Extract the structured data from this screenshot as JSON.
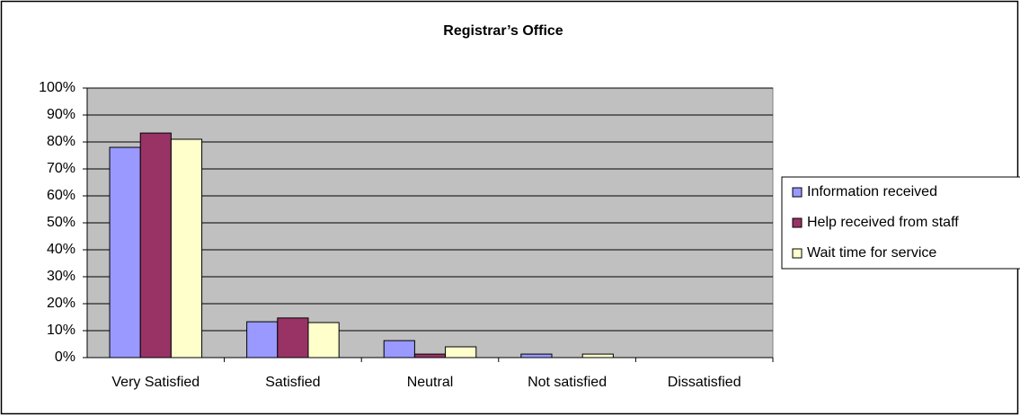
{
  "chart_data": {
    "type": "bar",
    "title": "Registrar’s Office",
    "categories": [
      "Very Satisfied",
      "Satisfied",
      "Neutral",
      "Not satisfied",
      "Dissatisfied"
    ],
    "series": [
      {
        "name": "Information received",
        "color": "#9999ff",
        "values": [
          78,
          13.3,
          6.3,
          1.3,
          0
        ]
      },
      {
        "name": "Help received from staff",
        "color": "#993366",
        "values": [
          83.3,
          14.7,
          1.3,
          0,
          0
        ]
      },
      {
        "name": "Wait time for service",
        "color": "#ffffcc",
        "values": [
          81,
          13,
          4,
          1.3,
          0
        ]
      }
    ],
    "ylim": [
      0,
      100
    ],
    "yticks": [
      {
        "value": 0,
        "label": "0%"
      },
      {
        "value": 10,
        "label": "10%"
      },
      {
        "value": 20,
        "label": "20%"
      },
      {
        "value": 30,
        "label": "30%"
      },
      {
        "value": 40,
        "label": "40%"
      },
      {
        "value": 50,
        "label": "50%"
      },
      {
        "value": 60,
        "label": "60%"
      },
      {
        "value": 70,
        "label": "70%"
      },
      {
        "value": 80,
        "label": "80%"
      },
      {
        "value": 90,
        "label": "90%"
      },
      {
        "value": 100,
        "label": "100%"
      }
    ],
    "grid": true,
    "legend": "right"
  }
}
